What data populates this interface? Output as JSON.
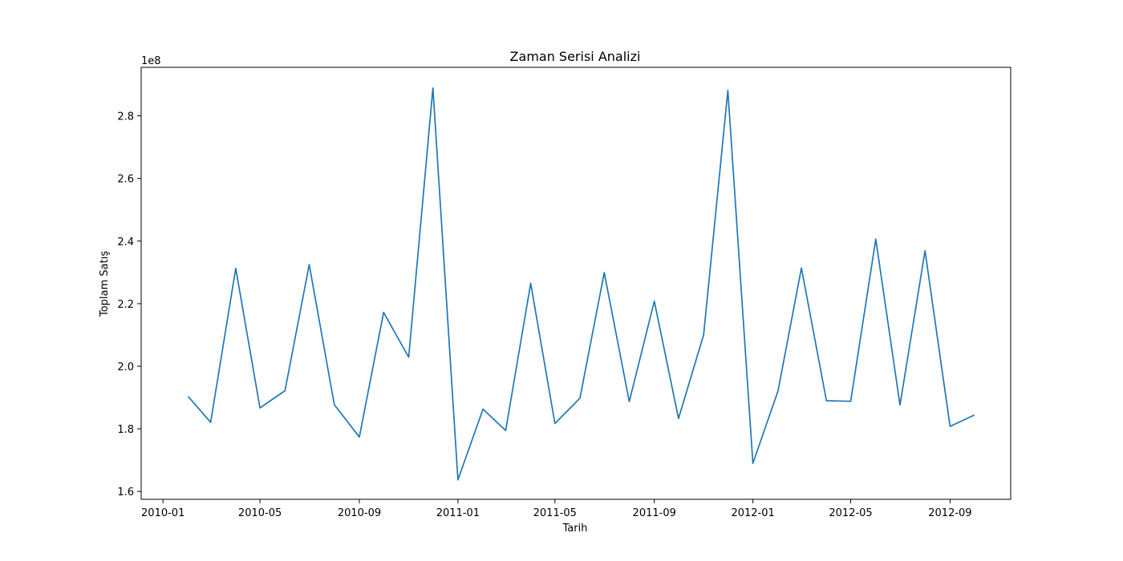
{
  "chart_data": {
    "type": "line",
    "title": "Zaman Serisi Analizi",
    "xlabel": "Tarih",
    "ylabel": "Toplam Satış",
    "y_multiplier_label": "1e8",
    "y_scale": 100000000,
    "xlim": [
      "2009-12-05",
      "2012-11-15"
    ],
    "ylim": [
      1.575,
      2.955
    ],
    "x_ticks": [
      "2010-01-01",
      "2010-05-01",
      "2010-09-01",
      "2011-01-01",
      "2011-05-01",
      "2011-09-01",
      "2012-01-01",
      "2012-05-01",
      "2012-09-01"
    ],
    "x_tick_labels": [
      "2010-01",
      "2010-05",
      "2010-09",
      "2011-01",
      "2011-05",
      "2011-09",
      "2012-01",
      "2012-05",
      "2012-09"
    ],
    "y_ticks": [
      1.6,
      1.8,
      2.0,
      2.2,
      2.4,
      2.6,
      2.8
    ],
    "y_tick_labels": [
      "1.6",
      "1.8",
      "2.0",
      "2.2",
      "2.4",
      "2.6",
      "2.8"
    ],
    "grid": false,
    "series": [
      {
        "color": "#1f77b4",
        "x": [
          "2010-02-01",
          "2010-03-01",
          "2010-04-01",
          "2010-05-01",
          "2010-06-01",
          "2010-07-01",
          "2010-08-01",
          "2010-09-01",
          "2010-10-01",
          "2010-11-01",
          "2010-12-01",
          "2011-01-01",
          "2011-02-01",
          "2011-03-01",
          "2011-04-01",
          "2011-05-01",
          "2011-06-01",
          "2011-07-01",
          "2011-08-01",
          "2011-09-01",
          "2011-10-01",
          "2011-11-01",
          "2011-12-01",
          "2012-01-01",
          "2012-02-01",
          "2012-03-01",
          "2012-04-01",
          "2012-05-01",
          "2012-06-01",
          "2012-07-01",
          "2012-08-01",
          "2012-09-01",
          "2012-10-01"
        ],
        "values": [
          1.904,
          1.821,
          2.313,
          1.867,
          1.922,
          2.325,
          1.877,
          1.774,
          2.172,
          2.029,
          2.889,
          1.637,
          1.863,
          1.795,
          2.265,
          1.817,
          1.898,
          2.299,
          1.887,
          2.208,
          1.833,
          2.101,
          2.881,
          1.69,
          1.921,
          2.314,
          1.89,
          1.888,
          2.406,
          1.876,
          2.369,
          1.808,
          1.844
        ]
      }
    ]
  }
}
